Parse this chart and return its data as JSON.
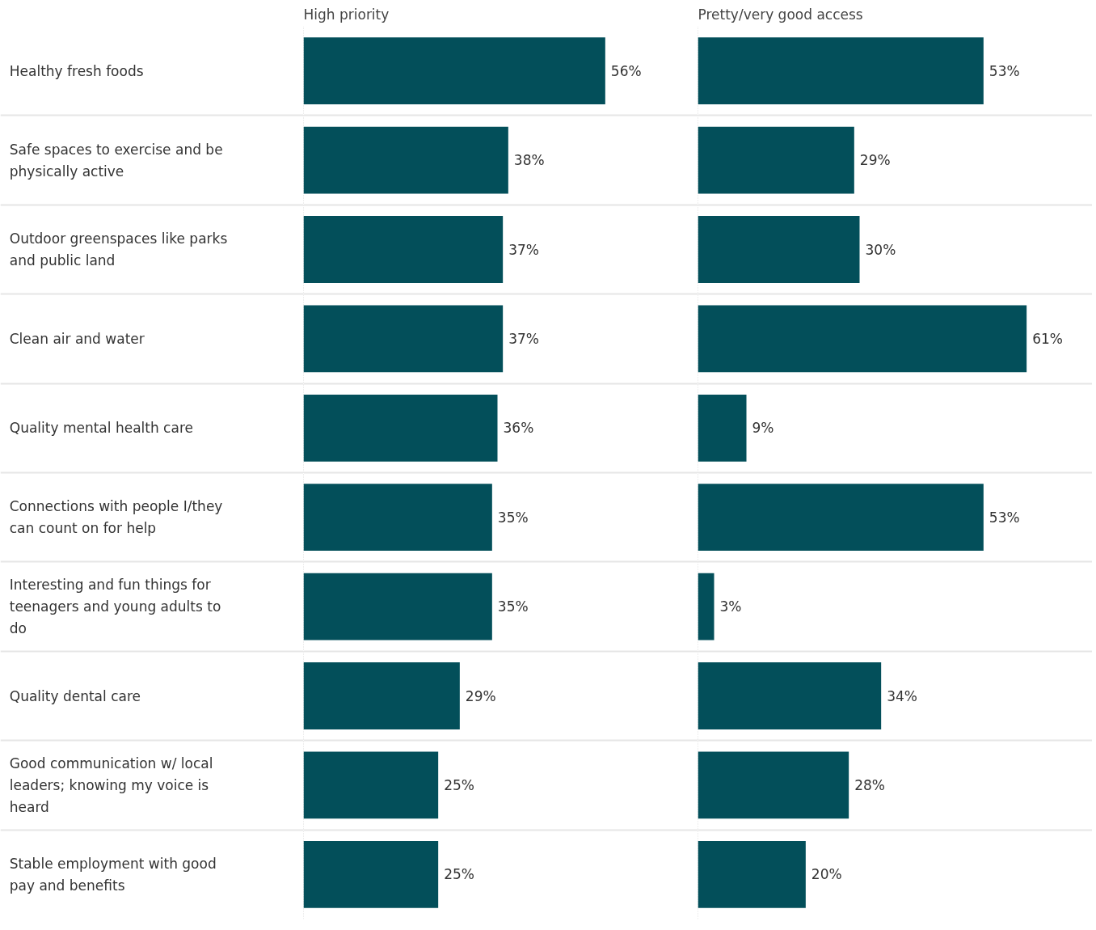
{
  "chart_data": [
    {
      "type": "bar",
      "orientation": "horizontal",
      "title": "High priority",
      "tick_labels": "y",
      "grid": "y",
      "color": "#034f5a",
      "categories": [
        "Healthy fresh foods",
        "Safe spaces to exercise and be physically active",
        "Outdoor greenspaces like parks and public land",
        "Clean air and water",
        "Quality mental health care",
        "Connections with people I/they can count on for help",
        "Interesting and fun things for teenagers and young adults to do",
        "Quality dental care",
        "Good communication w/ local leaders; knowing my voice is heard",
        "Stable employment with good pay and benefits"
      ],
      "values": [
        56,
        38,
        37,
        37,
        36,
        35,
        35,
        29,
        25,
        25
      ],
      "value_labels": [
        "56%",
        "38%",
        "37%",
        "37%",
        "36%",
        "35%",
        "35%",
        "29%",
        "25%",
        "25%"
      ]
    },
    {
      "type": "bar",
      "orientation": "horizontal",
      "title": "Pretty/very good access",
      "tick_labels": false,
      "grid": "y",
      "color": "#034f5a",
      "categories": [
        "Healthy fresh foods",
        "Safe spaces to exercise and be physically active",
        "Outdoor greenspaces like parks and public land",
        "Clean air and water",
        "Quality mental health care",
        "Connections with people I/they can count on for help",
        "Interesting and fun things for teenagers and young adults to do",
        "Quality dental care",
        "Good communication w/ local leaders; knowing my voice is heard",
        "Stable employment with good pay and benefits"
      ],
      "values": [
        53,
        29,
        30,
        61,
        9,
        53,
        3,
        34,
        28,
        20
      ],
      "value_labels": [
        "53%",
        "29%",
        "30%",
        "61%",
        "9%",
        "53%",
        "3%",
        "34%",
        "28%",
        "20%"
      ]
    }
  ]
}
